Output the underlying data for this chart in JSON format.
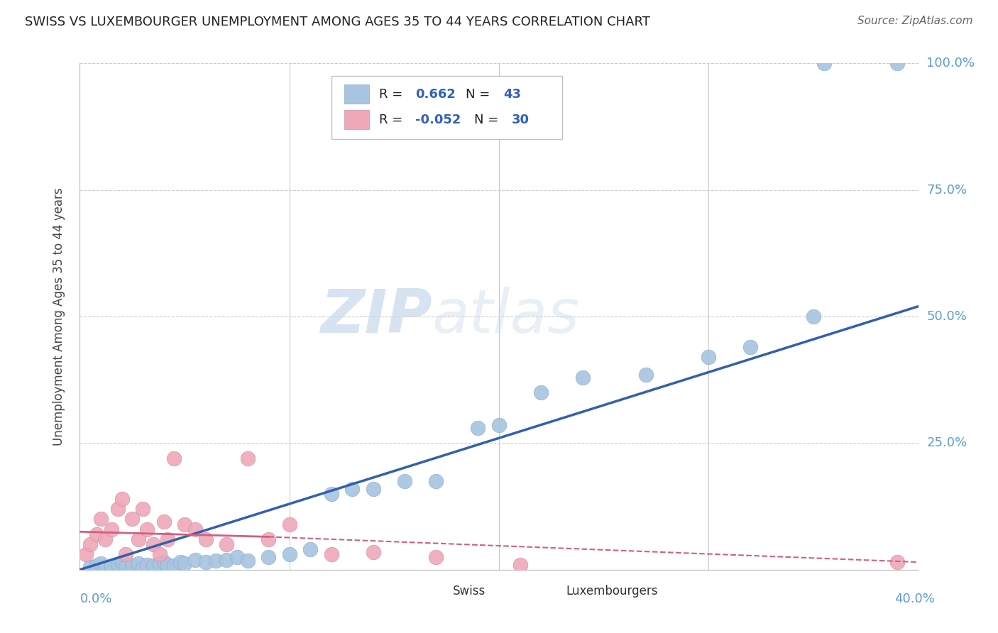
{
  "title": "SWISS VS LUXEMBOURGER UNEMPLOYMENT AMONG AGES 35 TO 44 YEARS CORRELATION CHART",
  "source": "Source: ZipAtlas.com",
  "xlim": [
    0.0,
    0.4
  ],
  "ylim": [
    0.0,
    1.0
  ],
  "watermark": "ZIPatlas",
  "legend_swiss_R": "0.662",
  "legend_swiss_N": "43",
  "legend_lux_R": "-0.052",
  "legend_lux_N": "30",
  "swiss_color": "#a8c4e0",
  "lux_color": "#f0a8b8",
  "swiss_line_color": "#3060b0",
  "lux_line_color": "#d06080",
  "background_color": "#ffffff",
  "grid_color": "#cccccc",
  "title_color": "#222222",
  "axis_label_color": "#5b9bd5",
  "legend_r_color": "#3060c0",
  "ylabel_label": "Unemployment Among Ages 35 to 44 years",
  "swiss_dots_x": [
    0.005,
    0.008,
    0.01,
    0.012,
    0.015,
    0.018,
    0.02,
    0.022,
    0.025,
    0.028,
    0.03,
    0.032,
    0.035,
    0.038,
    0.04,
    0.042,
    0.045,
    0.048,
    0.05,
    0.055,
    0.06,
    0.065,
    0.07,
    0.075,
    0.08,
    0.09,
    0.1,
    0.11,
    0.12,
    0.13,
    0.14,
    0.155,
    0.17,
    0.19,
    0.2,
    0.22,
    0.24,
    0.27,
    0.3,
    0.32,
    0.35,
    0.355,
    0.39
  ],
  "swiss_dots_y": [
    0.005,
    0.008,
    0.012,
    0.003,
    0.007,
    0.01,
    0.015,
    0.005,
    0.008,
    0.012,
    0.004,
    0.01,
    0.008,
    0.012,
    0.015,
    0.01,
    0.008,
    0.015,
    0.012,
    0.02,
    0.015,
    0.018,
    0.02,
    0.025,
    0.018,
    0.025,
    0.03,
    0.04,
    0.15,
    0.16,
    0.16,
    0.175,
    0.175,
    0.28,
    0.285,
    0.35,
    0.38,
    0.385,
    0.42,
    0.44,
    0.5,
    1.0,
    1.0
  ],
  "lux_dots_x": [
    0.003,
    0.005,
    0.008,
    0.01,
    0.012,
    0.015,
    0.018,
    0.02,
    0.022,
    0.025,
    0.028,
    0.03,
    0.032,
    0.035,
    0.038,
    0.04,
    0.042,
    0.045,
    0.05,
    0.055,
    0.06,
    0.07,
    0.08,
    0.09,
    0.1,
    0.12,
    0.14,
    0.17,
    0.21,
    0.39
  ],
  "lux_dots_y": [
    0.03,
    0.05,
    0.07,
    0.1,
    0.06,
    0.08,
    0.12,
    0.14,
    0.03,
    0.1,
    0.06,
    0.12,
    0.08,
    0.05,
    0.03,
    0.095,
    0.06,
    0.22,
    0.09,
    0.08,
    0.06,
    0.05,
    0.22,
    0.06,
    0.09,
    0.03,
    0.035,
    0.025,
    0.01,
    0.015
  ],
  "swiss_regline_x": [
    0.0,
    0.4
  ],
  "swiss_regline_y": [
    0.0,
    0.52
  ],
  "lux_regline_x": [
    0.0,
    0.4
  ],
  "lux_regline_y": [
    0.075,
    0.015
  ]
}
